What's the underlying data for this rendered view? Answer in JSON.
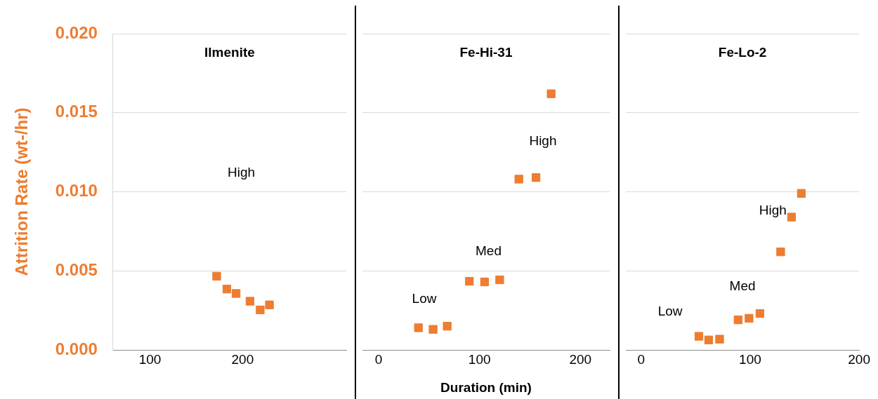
{
  "chart_data": [
    {
      "type": "scatter",
      "title": "Ilmenite",
      "ylabel": "Attrition Rate (wt-/hr)",
      "color": "#ed7d31",
      "marker": "square",
      "grid": "y",
      "x": [
        172,
        183,
        193,
        208,
        219,
        229
      ],
      "values": [
        0.00466,
        0.00385,
        0.00357,
        0.00308,
        0.00253,
        0.00285
      ],
      "xlim": [
        60,
        312
      ],
      "xticks": [
        100,
        200
      ],
      "ylim": [
        0,
        0.02
      ],
      "yticks": [
        {
          "value": 0,
          "label": "0.000"
        },
        {
          "value": 0.005,
          "label": "0.005"
        },
        {
          "value": 0.01,
          "label": "0.010"
        },
        {
          "value": 0.015,
          "label": "0.015"
        },
        {
          "value": 0.02,
          "label": "0.020"
        }
      ],
      "annotations": [
        "High"
      ]
    },
    {
      "type": "scatter",
      "title": "Fe-Hi-31",
      "xlabel": "Duration (min)",
      "color": "#ed7d31",
      "marker": "square",
      "grid": "y",
      "tick_labels": "x",
      "x": [
        39.5,
        54,
        68,
        90,
        105,
        120,
        139,
        156,
        171
      ],
      "values": [
        0.0014,
        0.0013,
        0.0015,
        0.00434,
        0.0043,
        0.00443,
        0.0108,
        0.0109,
        0.0162
      ],
      "xlim": [
        -16,
        229
      ],
      "xticks": [
        0,
        100,
        200
      ],
      "ylim": [
        0,
        0.02
      ],
      "yticks": [
        0,
        0.005,
        0.01,
        0.015,
        0.02
      ],
      "annotations": [
        "Low",
        "Med",
        "High"
      ]
    },
    {
      "type": "scatter",
      "title": "Fe-Lo-2",
      "color": "#ed7d31",
      "marker": "square",
      "grid": "y",
      "tick_labels": "x",
      "x": [
        53,
        62,
        72,
        89,
        99,
        109,
        128,
        138,
        147
      ],
      "values": [
        0.00086,
        0.00063,
        0.00068,
        0.0019,
        0.002,
        0.0023,
        0.0062,
        0.0084,
        0.0099
      ],
      "xlim": [
        -14,
        200
      ],
      "xticks": [
        0,
        100,
        200
      ],
      "ylim": [
        0,
        0.02
      ],
      "yticks": [
        0,
        0.005,
        0.01,
        0.015,
        0.02
      ],
      "annotations": [
        "Low",
        "Med",
        "High"
      ]
    }
  ]
}
